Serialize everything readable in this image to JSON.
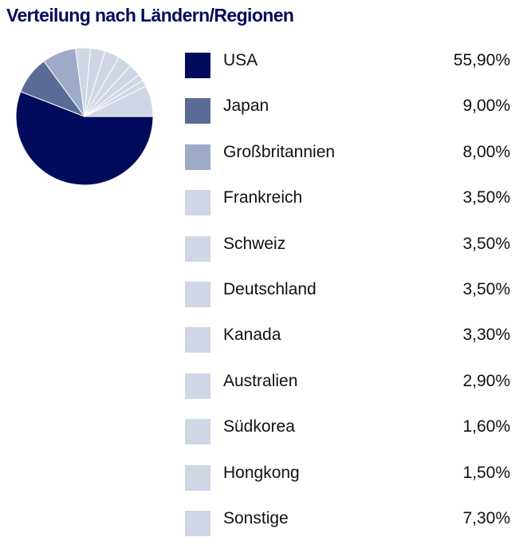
{
  "chart_data": {
    "type": "pie",
    "title": "Verteilung nach Ländern/Regionen",
    "legend_position": "right",
    "slices": [
      {
        "label": "USA",
        "value": 55.9,
        "value_text": "55,90%",
        "color": "#000b5c"
      },
      {
        "label": "Japan",
        "value": 9.0,
        "value_text": "9,00%",
        "color": "#5a6b95"
      },
      {
        "label": "Großbritannien",
        "value": 8.0,
        "value_text": "8,00%",
        "color": "#9eabc8"
      },
      {
        "label": "Frankreich",
        "value": 3.5,
        "value_text": "3,50%",
        "color": "#d0d6e4"
      },
      {
        "label": "Schweiz",
        "value": 3.5,
        "value_text": "3,50%",
        "color": "#d0d6e4"
      },
      {
        "label": "Deutschland",
        "value": 3.5,
        "value_text": "3,50%",
        "color": "#d0d6e4"
      },
      {
        "label": "Kanada",
        "value": 3.3,
        "value_text": "3,30%",
        "color": "#d0d6e4"
      },
      {
        "label": "Australien",
        "value": 2.9,
        "value_text": "2,90%",
        "color": "#d0d6e4"
      },
      {
        "label": "Südkorea",
        "value": 1.6,
        "value_text": "1,60%",
        "color": "#d0d6e4"
      },
      {
        "label": "Hongkong",
        "value": 1.5,
        "value_text": "1,50%",
        "color": "#d0d6e4"
      },
      {
        "label": "Sonstige",
        "value": 7.3,
        "value_text": "7,30%",
        "color": "#d0d6e4"
      }
    ]
  }
}
